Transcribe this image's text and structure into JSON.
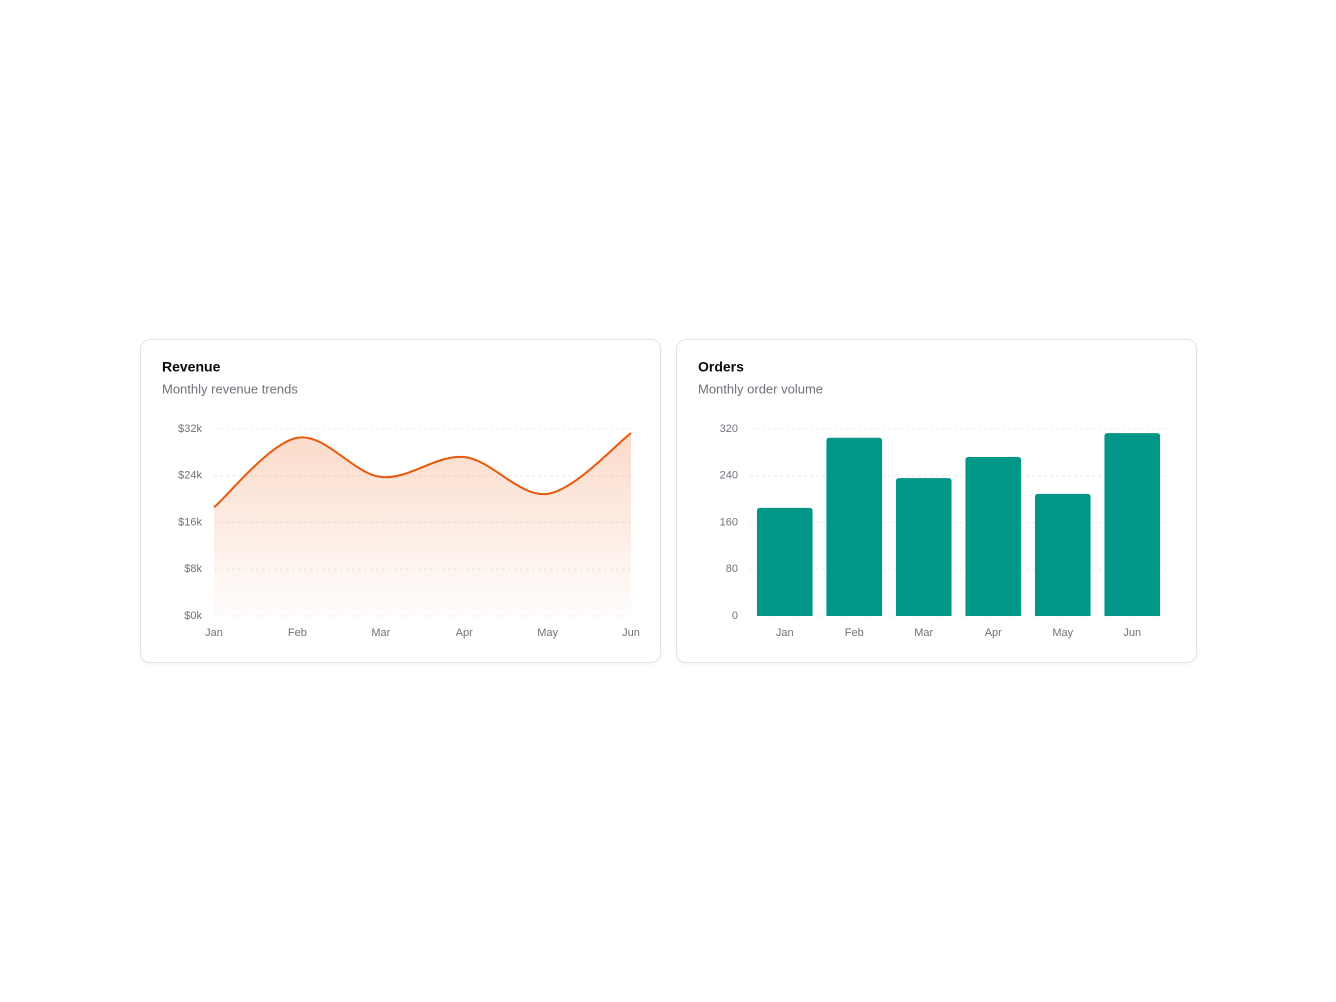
{
  "chart_data": [
    {
      "type": "area",
      "title": "Revenue",
      "subtitle": "Monthly revenue trends",
      "categories": [
        "Jan",
        "Feb",
        "Mar",
        "Apr",
        "May",
        "Jun"
      ],
      "values": [
        18600,
        30500,
        23800,
        27200,
        20900,
        31300
      ],
      "color": "#ea580c",
      "ylim": [
        0,
        32000
      ],
      "yticks": [
        {
          "value": 0,
          "label": "$0k"
        },
        {
          "value": 8000,
          "label": "$8k"
        },
        {
          "value": 16000,
          "label": "$16k"
        },
        {
          "value": 24000,
          "label": "$24k"
        },
        {
          "value": 32000,
          "label": "$32k"
        }
      ],
      "grid": true
    },
    {
      "type": "bar",
      "title": "Orders",
      "subtitle": "Monthly order volume",
      "categories": [
        "Jan",
        "Feb",
        "Mar",
        "Apr",
        "May",
        "Jun"
      ],
      "values": [
        185,
        305,
        236,
        272,
        209,
        313
      ],
      "color": "#009688",
      "ylim": [
        0,
        320
      ],
      "yticks": [
        0,
        80,
        160,
        240,
        320
      ],
      "grid": true
    }
  ]
}
